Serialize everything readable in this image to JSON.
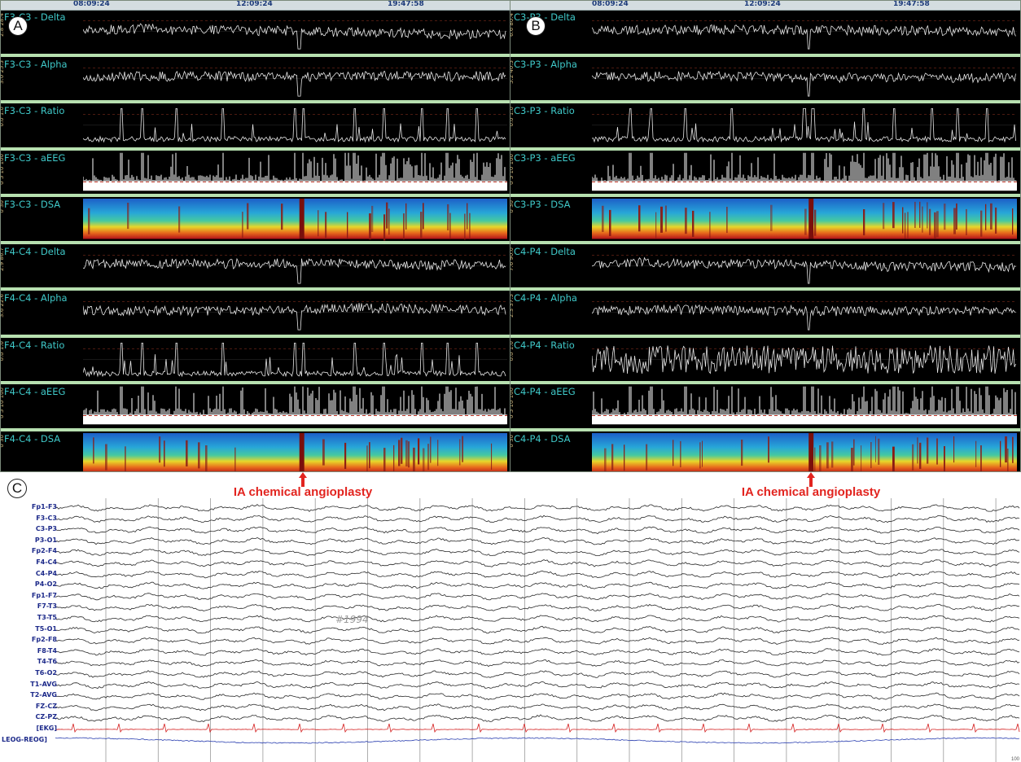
{
  "panels": [
    {
      "id": "A",
      "times": [
        "08:09:24",
        "12:09:24",
        "19:47:58"
      ],
      "tracks": [
        {
          "label": "F3-C3 - Delta",
          "type": "trend",
          "ticks": "2.8   28.4"
        },
        {
          "label": "F3-C3 - Alpha",
          "type": "trend",
          "ticks": "3.0   25.5"
        },
        {
          "label": "F3-C3 - Ratio",
          "type": "spiky",
          "ticks": "0.0   1.0"
        },
        {
          "label": "F3-C3 - aEEG",
          "type": "aeeg",
          "ticks": "0 5 10 100"
        },
        {
          "label": "F3-C3 - DSA",
          "type": "dsa",
          "ticks": "0   30"
        },
        {
          "label": "F4-C4 - Delta",
          "type": "trend",
          "ticks": "2.9   86.7"
        },
        {
          "label": "F4-C4 - Alpha",
          "type": "trend",
          "ticks": "3.6   22.6"
        },
        {
          "label": "F4-C4 - Ratio",
          "type": "spiky",
          "ticks": "0.0   1.0"
        },
        {
          "label": "F4-C4 - aEEG",
          "type": "aeeg",
          "ticks": "0 5 10 100"
        },
        {
          "label": "F4-C4 - DSA",
          "type": "dsa",
          "ticks": "0   30"
        }
      ]
    },
    {
      "id": "B",
      "times": [
        "08:09:24",
        "12:09:24",
        "19:47:58"
      ],
      "tracks": [
        {
          "label": "C3-P3 - Delta",
          "type": "trend",
          "ticks": "6.6   80.4"
        },
        {
          "label": "C3-P3 - Alpha",
          "type": "trend",
          "ticks": "5.2   40.5"
        },
        {
          "label": "C3-P3 - Ratio",
          "type": "spiky",
          "ticks": "0.0   1.0"
        },
        {
          "label": "C3-P3 - aEEG",
          "type": "aeeg",
          "ticks": "0 5 10 100"
        },
        {
          "label": "C3-P3 - DSA",
          "type": "dsa",
          "ticks": "0   30"
        },
        {
          "label": "C4-P4 - Delta",
          "type": "trend",
          "ticks": "7.6   90.0"
        },
        {
          "label": "C4-P4 - Alpha",
          "type": "trend",
          "ticks": "2.3   37.5"
        },
        {
          "label": "C4-P4 - Ratio",
          "type": "noisy",
          "ticks": "0.0   1.0"
        },
        {
          "label": "C4-P4 - aEEG",
          "type": "aeeg",
          "ticks": "0 5 10 100"
        },
        {
          "label": "C4-P4 - DSA",
          "type": "dsa",
          "ticks": "0   30"
        }
      ]
    }
  ],
  "event_label": "IA chemical angioplasty",
  "panel_c": {
    "id": "C",
    "watermark": "#1994",
    "scale_note": "100",
    "channels": [
      "Fp1-F3",
      "F3-C3",
      "C3-P3",
      "P3-O1",
      "Fp2-F4",
      "F4-C4",
      "C4-P4",
      "P4-O2",
      "Fp1-F7",
      "F7-T3",
      "T3-T5",
      "T5-O1",
      "Fp2-F8",
      "F8-T4",
      "T4-T6",
      "T6-O2",
      "T1-AVG",
      "T2-AVG",
      "FZ-CZ",
      "CZ-PZ",
      "[EKG]",
      "LEOG-REOG]"
    ]
  },
  "colors": {
    "trace": "#e6e6e6",
    "label": "#3fc8c8",
    "separator": "#b7e0b0",
    "event": "#e2241f",
    "ekg": "#d42020",
    "eog": "#2a3fb0",
    "channel_label": "#1d2a8a"
  }
}
